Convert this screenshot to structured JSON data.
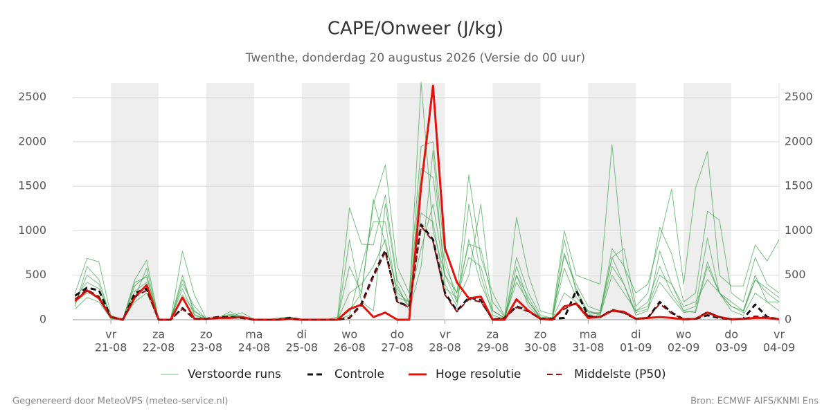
{
  "chart_data": {
    "type": "line",
    "title": "CAPE/Onweer (J/kg)",
    "subtitle": "Twenthe, donderdag 20 augustus 2026 (Versie do 00 uur)",
    "footer_left": "Gegenereerd door MeteoVPS (meteo-service.nl)",
    "footer_right": "Bron: ECMWF AIFS/KNMI Ens",
    "xlim": [
      0.2,
      15
    ],
    "ylim": [
      0,
      2660
    ],
    "yticks": [
      0,
      500,
      1000,
      1500,
      2000,
      2500
    ],
    "grid": true,
    "legend": "bottom",
    "shaded_days": [
      [
        1,
        2
      ],
      [
        3,
        4
      ],
      [
        5,
        6
      ],
      [
        7,
        8
      ],
      [
        9,
        10
      ],
      [
        11,
        12
      ],
      [
        13,
        14
      ]
    ],
    "xticks": [
      {
        "value": 1,
        "label": "21-08",
        "weekday": "vr"
      },
      {
        "value": 2,
        "label": "22-08",
        "weekday": "za"
      },
      {
        "value": 3,
        "label": "23-08",
        "weekday": "zo"
      },
      {
        "value": 4,
        "label": "24-08",
        "weekday": "ma"
      },
      {
        "value": 5,
        "label": "25-08",
        "weekday": "di"
      },
      {
        "value": 6,
        "label": "26-08",
        "weekday": "wo"
      },
      {
        "value": 7,
        "label": "27-08",
        "weekday": "do"
      },
      {
        "value": 8,
        "label": "28-08",
        "weekday": "vr"
      },
      {
        "value": 9,
        "label": "29-08",
        "weekday": "za"
      },
      {
        "value": 10,
        "label": "30-08",
        "weekday": "zo"
      },
      {
        "value": 11,
        "label": "31-08",
        "weekday": "ma"
      },
      {
        "value": 12,
        "label": "01-09",
        "weekday": "di"
      },
      {
        "value": 13,
        "label": "02-09",
        "weekday": "wo"
      },
      {
        "value": 14,
        "label": "03-09",
        "weekday": "do"
      },
      {
        "value": 15,
        "label": "04-09",
        "weekday": "vr"
      }
    ],
    "x": [
      0.25,
      0.5,
      0.75,
      1,
      1.25,
      1.5,
      1.75,
      2,
      2.25,
      2.5,
      2.75,
      3,
      3.25,
      3.5,
      3.75,
      4,
      4.25,
      4.5,
      4.75,
      5,
      5.25,
      5.5,
      5.75,
      6,
      6.25,
      6.5,
      6.75,
      7,
      7.25,
      7.5,
      7.75,
      8,
      8.25,
      8.5,
      8.75,
      9,
      9.25,
      9.5,
      9.75,
      10,
      10.25,
      10.5,
      10.75,
      11,
      11.25,
      11.5,
      11.75,
      12,
      12.25,
      12.5,
      12.75,
      13,
      13.25,
      13.5,
      13.75,
      14,
      14.25,
      14.5,
      14.75,
      15
    ],
    "series": [
      {
        "name": "Verstoorde runs",
        "color": "#2e9e3e",
        "width": 1,
        "opacity": 0.65,
        "dash": false,
        "values": [
          300,
          690,
          650,
          50,
          0,
          450,
          670,
          0,
          0,
          770,
          280,
          10,
          30,
          60,
          40,
          0,
          0,
          10,
          30,
          0,
          0,
          0,
          30,
          1260,
          850,
          840,
          1400,
          450,
          200,
          2670,
          1000,
          500,
          300,
          1630,
          700,
          300,
          40,
          1150,
          500,
          100,
          60,
          1000,
          500,
          450,
          400,
          1970,
          600,
          300,
          400,
          900,
          1470,
          400,
          1480,
          1890,
          500,
          380,
          380,
          840,
          660,
          900
        ]
      },
      {
        "name": "Verstoorde runs",
        "color": "#2e9e3e",
        "width": 1,
        "opacity": 0.65,
        "dash": false,
        "values": [
          180,
          500,
          400,
          20,
          0,
          380,
          500,
          0,
          0,
          450,
          100,
          10,
          20,
          90,
          30,
          0,
          0,
          0,
          10,
          0,
          0,
          0,
          10,
          600,
          300,
          1300,
          1740,
          600,
          300,
          1950,
          2000,
          700,
          200,
          900,
          400,
          100,
          20,
          700,
          300,
          50,
          20,
          720,
          400,
          150,
          100,
          700,
          800,
          150,
          300,
          1040,
          740,
          200,
          300,
          1220,
          1120,
          300,
          200,
          700,
          400,
          300
        ]
      },
      {
        "name": "Verstoorde runs",
        "color": "#2e9e3e",
        "width": 1,
        "opacity": 0.65,
        "dash": false,
        "values": [
          120,
          250,
          200,
          10,
          0,
          200,
          300,
          0,
          0,
          350,
          50,
          5,
          10,
          40,
          20,
          0,
          0,
          0,
          5,
          0,
          0,
          0,
          0,
          900,
          200,
          100,
          1300,
          400,
          100,
          600,
          1900,
          400,
          150,
          1300,
          500,
          50,
          10,
          500,
          150,
          20,
          10,
          900,
          300,
          100,
          50,
          500,
          300,
          100,
          200,
          600,
          300,
          100,
          150,
          920,
          300,
          150,
          100,
          500,
          200,
          200
        ]
      },
      {
        "name": "Verstoorde runs",
        "color": "#2e9e3e",
        "width": 1,
        "opacity": 0.65,
        "dash": false,
        "values": [
          250,
          420,
          350,
          30,
          0,
          320,
          420,
          0,
          0,
          500,
          60,
          5,
          15,
          50,
          30,
          0,
          0,
          0,
          20,
          0,
          0,
          0,
          0,
          300,
          400,
          600,
          900,
          300,
          200,
          1700,
          1600,
          600,
          300,
          850,
          800,
          200,
          30,
          600,
          200,
          30,
          20,
          750,
          350,
          80,
          80,
          800,
          600,
          100,
          150,
          500,
          400,
          150,
          200,
          450,
          300,
          200,
          100,
          450,
          300,
          200
        ]
      },
      {
        "name": "Verstoorde runs",
        "color": "#2e9e3e",
        "width": 1,
        "opacity": 0.65,
        "dash": false,
        "values": [
          150,
          600,
          450,
          20,
          0,
          250,
          580,
          0,
          0,
          400,
          150,
          5,
          25,
          30,
          80,
          0,
          0,
          20,
          30,
          0,
          0,
          0,
          0,
          50,
          600,
          1100,
          1100,
          250,
          200,
          800,
          1300,
          500,
          200,
          500,
          1300,
          100,
          20,
          500,
          250,
          10,
          10,
          580,
          250,
          100,
          60,
          600,
          400,
          50,
          100,
          770,
          400,
          100,
          80,
          600,
          300,
          100,
          50,
          300,
          200,
          100
        ]
      },
      {
        "name": "Verstoorde runs",
        "color": "#2e9e3e",
        "width": 1,
        "opacity": 0.65,
        "dash": false,
        "values": [
          200,
          300,
          270,
          40,
          0,
          420,
          480,
          0,
          0,
          280,
          90,
          10,
          20,
          20,
          25,
          0,
          0,
          0,
          10,
          0,
          0,
          0,
          0,
          100,
          300,
          1350,
          850,
          350,
          150,
          1200,
          1100,
          350,
          250,
          700,
          600,
          100,
          20,
          420,
          200,
          20,
          10,
          300,
          200,
          60,
          70,
          700,
          400,
          80,
          120,
          420,
          250,
          80,
          100,
          650,
          300,
          150,
          80,
          450,
          350,
          250
        ]
      },
      {
        "name": "Controle",
        "color": "#111111",
        "width": 3,
        "opacity": 1,
        "dash": true,
        "values": [
          270,
          360,
          330,
          30,
          0,
          300,
          350,
          0,
          0,
          130,
          10,
          10,
          30,
          30,
          20,
          0,
          0,
          0,
          20,
          0,
          0,
          0,
          0,
          20,
          180,
          500,
          780,
          200,
          150,
          1070,
          900,
          300,
          100,
          250,
          220,
          0,
          20,
          150,
          100,
          10,
          10,
          20,
          330,
          40,
          30,
          110,
          80,
          10,
          20,
          200,
          80,
          5,
          10,
          50,
          20,
          5,
          10,
          170,
          30,
          5
        ]
      },
      {
        "name": "Hoge resolutie",
        "color": "#e3120b",
        "width": 3,
        "opacity": 1,
        "dash": false,
        "values": [
          210,
          330,
          240,
          30,
          0,
          250,
          390,
          0,
          0,
          250,
          10,
          10,
          20,
          20,
          30,
          0,
          0,
          0,
          10,
          0,
          0,
          0,
          0,
          120,
          170,
          30,
          80,
          0,
          0,
          1500,
          2630,
          800,
          420,
          240,
          260,
          0,
          0,
          230,
          100,
          10,
          0,
          150,
          180,
          20,
          30,
          100,
          90,
          10,
          20,
          30,
          20,
          5,
          10,
          80,
          30,
          5,
          10,
          20,
          20,
          5
        ]
      },
      {
        "name": "Middelste (P50)",
        "color": "#8b1010",
        "width": 2,
        "opacity": 1,
        "dash": true,
        "values": [
          230,
          340,
          260,
          30,
          0,
          260,
          330,
          0,
          0,
          120,
          10,
          10,
          20,
          30,
          20,
          0,
          0,
          0,
          10,
          0,
          0,
          0,
          0,
          20,
          160,
          480,
          760,
          200,
          140,
          1050,
          880,
          280,
          90,
          230,
          200,
          5,
          20,
          140,
          90,
          10,
          10,
          120,
          190,
          40,
          30,
          100,
          80,
          10,
          20,
          180,
          70,
          5,
          10,
          90,
          30,
          5,
          10,
          40,
          30,
          10
        ]
      }
    ]
  }
}
